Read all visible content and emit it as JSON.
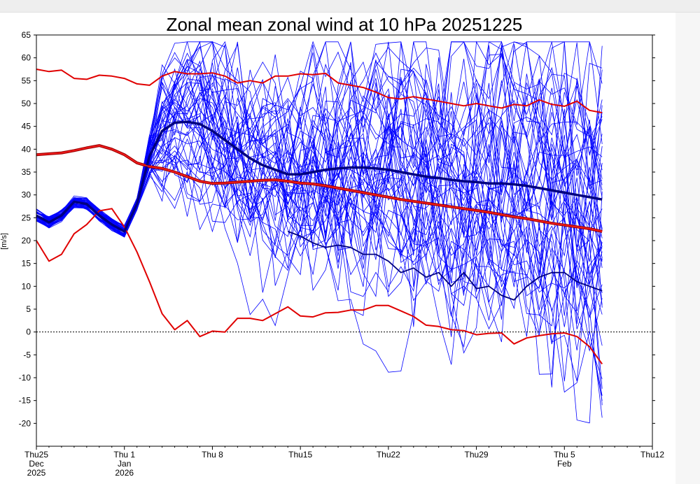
{
  "chart_data": {
    "type": "line",
    "title": "Zonal mean zonal wind at 10 hPa 20251225",
    "ylabel": "[m/s]",
    "xlabel": "",
    "ylim": [
      -25,
      65
    ],
    "xlim_days": [
      0,
      49
    ],
    "grid": false,
    "y_ticks": [
      "65",
      "60",
      "55",
      "50",
      "45",
      "40",
      "35",
      "30",
      "25",
      "20",
      "15",
      "10",
      "5",
      "0",
      "-5",
      "-10",
      "-15",
      "-20"
    ],
    "x_ticks": [
      {
        "day": 0,
        "lines": [
          "Thu25",
          "Dec",
          "2025"
        ]
      },
      {
        "day": 7,
        "lines": [
          "Thu 1",
          "Jan",
          "2026"
        ]
      },
      {
        "day": 14,
        "lines": [
          "Thu 8"
        ]
      },
      {
        "day": 21,
        "lines": [
          "Thu15"
        ]
      },
      {
        "day": 28,
        "lines": [
          "Thu22"
        ]
      },
      {
        "day": 35,
        "lines": [
          "Thu29"
        ]
      },
      {
        "day": 42,
        "lines": [
          "Thu 5",
          "Feb"
        ]
      },
      {
        "day": 49,
        "lines": [
          "Thu12"
        ]
      }
    ],
    "reference_line": {
      "y": 0,
      "style": "dotted"
    },
    "colors": {
      "ensemble": "#0000ff",
      "ensemble_mean": "#000080",
      "climatology": "#e00000",
      "climatology_mean": "#a00000"
    },
    "series": [
      {
        "role": "climatology-max",
        "x": [
          0,
          1,
          2,
          3,
          4,
          5,
          6,
          7,
          8,
          9,
          10,
          11,
          12,
          13,
          14,
          15,
          16,
          17,
          18,
          19,
          20,
          21,
          22,
          23,
          24,
          25,
          26,
          27,
          28,
          29,
          30,
          31,
          32,
          33,
          34,
          35,
          36,
          37,
          38,
          39,
          40,
          41,
          42,
          43,
          44,
          45
        ],
        "y": [
          57.5,
          57,
          57.3,
          55.5,
          55.3,
          56.2,
          56,
          55.5,
          54.3,
          54,
          56,
          57,
          56.5,
          56.5,
          56.7,
          56,
          54.5,
          55,
          54.5,
          56,
          56,
          56.5,
          56.3,
          56.6,
          54.5,
          54,
          53.5,
          52.5,
          51.3,
          51,
          51.5,
          51,
          50.5,
          50,
          49.5,
          50,
          49.5,
          49,
          49.8,
          49.5,
          50.8,
          49.8,
          49.4,
          50.5,
          48.5,
          48
        ]
      },
      {
        "role": "climatology-mean",
        "x": [
          0,
          1,
          2,
          3,
          4,
          5,
          6,
          7,
          8,
          9,
          10,
          11,
          12,
          13,
          14,
          15,
          16,
          17,
          18,
          19,
          20,
          21,
          22,
          23,
          24,
          25,
          26,
          27,
          28,
          29,
          30,
          31,
          32,
          33,
          34,
          35,
          36,
          37,
          38,
          39,
          40,
          41,
          42,
          43,
          44,
          45
        ],
        "y": [
          38.8,
          39,
          39.2,
          39.7,
          40.3,
          40.8,
          40,
          38.8,
          37,
          36.2,
          35.8,
          35,
          34,
          33,
          32.5,
          32.6,
          32.8,
          33,
          33.2,
          33.3,
          33,
          32.6,
          32.4,
          32,
          31.5,
          31,
          30.5,
          30,
          29.5,
          29,
          28.6,
          28.2,
          27.8,
          27.4,
          27,
          26.6,
          26.2,
          25.7,
          25.2,
          24.8,
          24.3,
          23.8,
          23.4,
          23,
          22.6,
          22
        ]
      },
      {
        "role": "climatology-min",
        "x": [
          0,
          1,
          2,
          3,
          4,
          5,
          6,
          7,
          8,
          9,
          10,
          11,
          12,
          13,
          14,
          15,
          16,
          17,
          18,
          19,
          20,
          21,
          22,
          23,
          24,
          25,
          26,
          27,
          28,
          29,
          30,
          31,
          32,
          33,
          34,
          35,
          36,
          37,
          38,
          39,
          40,
          41,
          42,
          43,
          44,
          45
        ],
        "y": [
          20,
          15.5,
          17,
          21.5,
          23.5,
          26.5,
          27,
          23,
          17.5,
          11,
          4,
          0.5,
          2.5,
          -1,
          0.2,
          0,
          3,
          3,
          2.5,
          4,
          5.5,
          3.5,
          3.3,
          4.2,
          4.3,
          4.8,
          4.8,
          5.8,
          5.8,
          4.6,
          3.4,
          1.5,
          1.2,
          0.5,
          0.3,
          -0.6,
          -0.3,
          -0.2,
          -2.6,
          -1.3,
          -0.8,
          -0.4,
          -0.2,
          -1,
          -3.2,
          -7
        ]
      },
      {
        "role": "ensemble-mean",
        "x": [
          0,
          1,
          2,
          3,
          4,
          5,
          6,
          7,
          8,
          9,
          10,
          11,
          12,
          13,
          14,
          15,
          16,
          17,
          18,
          19,
          20,
          21,
          22,
          23,
          24,
          25,
          26,
          27,
          28,
          29,
          30,
          31,
          32,
          33,
          34,
          35,
          36,
          37,
          38,
          39,
          40,
          41,
          42,
          43,
          44,
          45
        ],
        "y": [
          25.5,
          24,
          25.5,
          28.5,
          28,
          25.5,
          23.5,
          22,
          28,
          38.5,
          44,
          45.8,
          46,
          45.5,
          44,
          42,
          40,
          38,
          36.5,
          35.5,
          34.5,
          34.5,
          35,
          35.5,
          35.8,
          36,
          36,
          35.8,
          35.5,
          35,
          34.5,
          34,
          33.7,
          33.3,
          33,
          32.8,
          32.5,
          32.5,
          32.3,
          32,
          31.5,
          31,
          30.5,
          30,
          29.5,
          29
        ]
      },
      {
        "role": "ensemble-member-low",
        "x": [
          20,
          21,
          22,
          23,
          24,
          25,
          26,
          27,
          28,
          29,
          30,
          31,
          32,
          33,
          34,
          35,
          36,
          37,
          38,
          39,
          40,
          41,
          42,
          43,
          44,
          45
        ],
        "y": [
          22,
          21,
          19.5,
          18.5,
          19,
          18.5,
          17,
          17,
          15.5,
          13,
          14,
          12,
          13,
          10,
          13,
          9.5,
          10,
          8,
          7,
          10,
          12,
          13,
          13,
          11,
          10,
          9
        ]
      }
    ]
  }
}
